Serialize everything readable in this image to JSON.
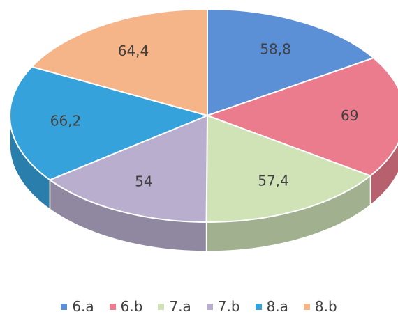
{
  "chart_data": {
    "type": "pie",
    "variant": "3d",
    "labels": [
      "6.a",
      "6.b",
      "7.a",
      "7.b",
      "8.a",
      "8.b"
    ],
    "values": [
      58.8,
      69,
      57.4,
      54,
      66.2,
      64.4
    ],
    "data_labels": [
      "58,8",
      "69",
      "57,4",
      "54",
      "66,2",
      "64,4"
    ],
    "colors": [
      "#5b8fd6",
      "#eb7c8d",
      "#cfe3b7",
      "#b9aecd",
      "#36a2dc",
      "#f6b489"
    ],
    "legend_position": "bottom",
    "title": ""
  }
}
